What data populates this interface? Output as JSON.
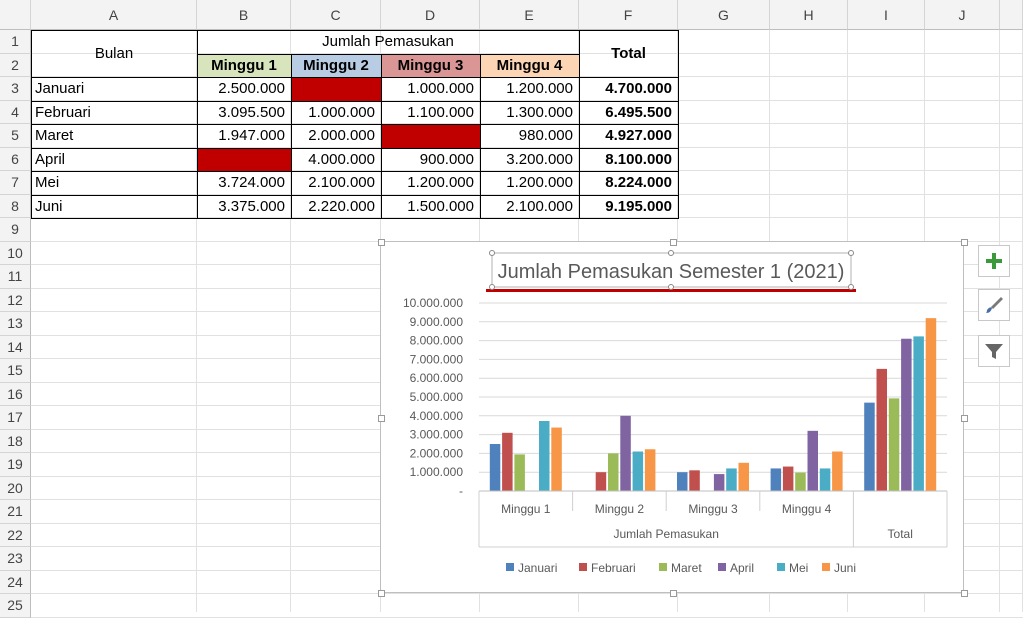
{
  "columns": [
    "A",
    "B",
    "C",
    "D",
    "E",
    "F",
    "G",
    "H",
    "I",
    "J"
  ],
  "rows": [
    "1",
    "2",
    "3",
    "4",
    "5",
    "6",
    "7",
    "8",
    "9",
    "10",
    "11",
    "12",
    "13",
    "14",
    "15",
    "16",
    "17",
    "18",
    "19",
    "20",
    "21",
    "22",
    "23",
    "24",
    "25"
  ],
  "table": {
    "bulan_header": "Bulan",
    "group_header": "Jumlah Pemasukan",
    "total_header": "Total",
    "week_headers": [
      "Minggu 1",
      "Minggu 2",
      "Minggu 3",
      "Minggu 4"
    ],
    "week_colors": [
      "#d8e4bc",
      "#b8cce4",
      "#da9694",
      "#fcd5b4"
    ],
    "blank_fill_color": "#c00000",
    "data": [
      {
        "month": "Januari",
        "w1": "2.500.000",
        "w2": "",
        "w3": "1.000.000",
        "w4": "1.200.000",
        "total": "4.700.000"
      },
      {
        "month": "Februari",
        "w1": "3.095.500",
        "w2": "1.000.000",
        "w3": "1.100.000",
        "w4": "1.300.000",
        "total": "6.495.500"
      },
      {
        "month": "Maret",
        "w1": "1.947.000",
        "w2": "2.000.000",
        "w3": "",
        "w4": "980.000",
        "total": "4.927.000"
      },
      {
        "month": "April",
        "w1": "",
        "w2": "4.000.000",
        "w3": "900.000",
        "w4": "3.200.000",
        "total": "8.100.000"
      },
      {
        "month": "Mei",
        "w1": "3.724.000",
        "w2": "2.100.000",
        "w3": "1.200.000",
        "w4": "1.200.000",
        "total": "8.224.000"
      },
      {
        "month": "Juni",
        "w1": "3.375.000",
        "w2": "2.220.000",
        "w3": "1.500.000",
        "w4": "2.100.000",
        "total": "9.195.000"
      }
    ]
  },
  "chart_data": {
    "type": "bar",
    "title": "Jumlah Pemasukan Semester 1 (2021)",
    "categories": [
      "Minggu 1",
      "Minggu 2",
      "Minggu 3",
      "Minggu 4",
      "Total"
    ],
    "group_label": "Jumlah Pemasukan",
    "ylim": [
      0,
      10000000
    ],
    "yticks": [
      0,
      1000000,
      2000000,
      3000000,
      4000000,
      5000000,
      6000000,
      7000000,
      8000000,
      9000000,
      10000000
    ],
    "ytick_labels": [
      "-",
      "1.000.000",
      "2.000.000",
      "3.000.000",
      "4.000.000",
      "5.000.000",
      "6.000.000",
      "7.000.000",
      "8.000.000",
      "9.000.000",
      "10.000.000"
    ],
    "grid": true,
    "legend_position": "bottom",
    "series": [
      {
        "name": "Januari",
        "color": "#4f81bd",
        "values": [
          2500000,
          0,
          1000000,
          1200000,
          4700000
        ]
      },
      {
        "name": "Februari",
        "color": "#c0504d",
        "values": [
          3095500,
          1000000,
          1100000,
          1300000,
          6495500
        ]
      },
      {
        "name": "Maret",
        "color": "#9bbb59",
        "values": [
          1947000,
          2000000,
          0,
          980000,
          4927000
        ]
      },
      {
        "name": "April",
        "color": "#8064a2",
        "values": [
          0,
          4000000,
          900000,
          3200000,
          8100000
        ]
      },
      {
        "name": "Mei",
        "color": "#4bacc6",
        "values": [
          3724000,
          2100000,
          1200000,
          1200000,
          8224000
        ]
      },
      {
        "name": "Juni",
        "color": "#f79646",
        "values": [
          3375000,
          2220000,
          1500000,
          2100000,
          9195000
        ]
      }
    ]
  },
  "side_buttons": [
    {
      "name": "add-chart-element-button",
      "icon": "plus-icon",
      "color": "#3a9a3a"
    },
    {
      "name": "chart-styles-button",
      "icon": "paintbrush-icon",
      "color": "#4a6fa5"
    },
    {
      "name": "chart-filters-button",
      "icon": "funnel-icon",
      "color": "#666666"
    }
  ]
}
